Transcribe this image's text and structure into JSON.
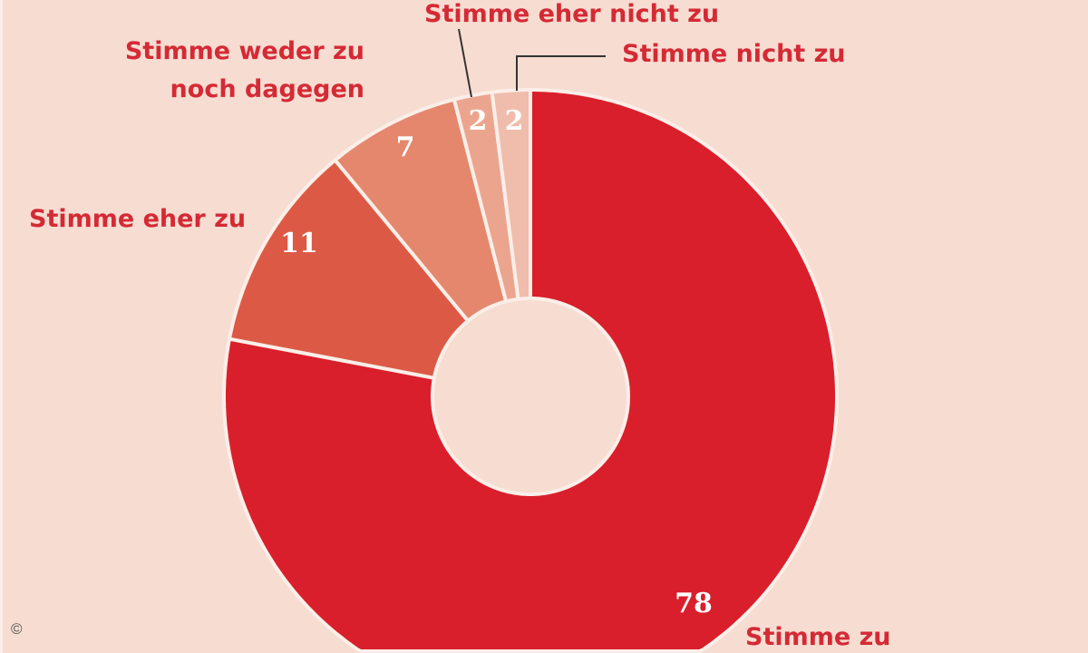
{
  "chart_data": {
    "type": "pie",
    "variant": "donut",
    "categories": [
      "Stimme zu",
      "Stimme eher zu",
      "Stimme weder zu noch dagegen",
      "Stimme eher nicht zu",
      "Stimme nicht zu"
    ],
    "label_lines": [
      [
        "Stimme zu"
      ],
      [
        "Stimme eher zu"
      ],
      [
        "Stimme weder zu",
        "noch dagegen"
      ],
      [
        "Stimme eher nicht zu"
      ],
      [
        "Stimme nicht zu"
      ]
    ],
    "values": [
      78,
      11,
      7,
      2,
      2
    ],
    "colors": [
      "#d91f2b",
      "#dc5a45",
      "#e5876d",
      "#eba58f",
      "#f0bcab"
    ],
    "start": "top",
    "direction": "clockwise"
  },
  "footer": {
    "copyright": "©"
  }
}
